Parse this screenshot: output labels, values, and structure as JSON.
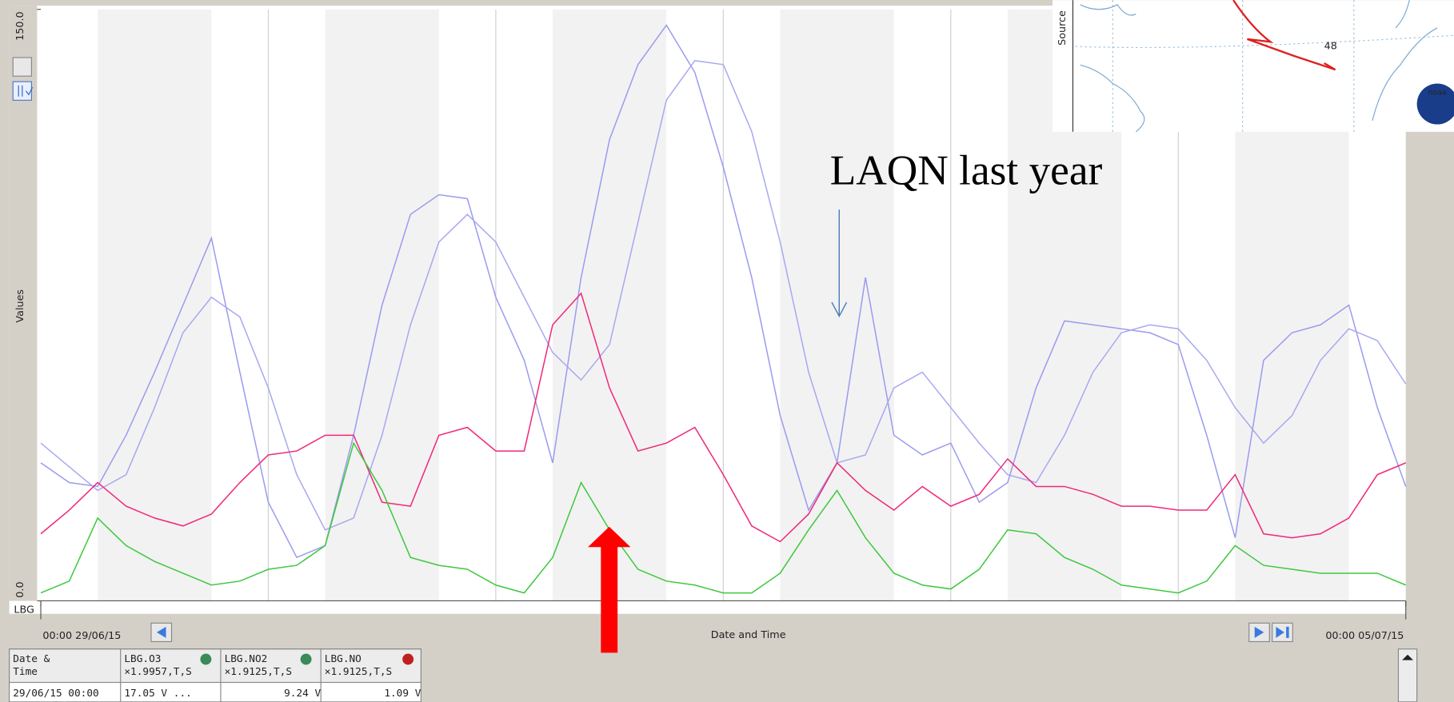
{
  "chart_data": {
    "type": "line",
    "ylabel": "Values",
    "xlabel": "Date and Time",
    "station": "LBG",
    "annotation": "LAQN last year",
    "xlim": [
      0,
      144
    ],
    "xticks": [
      {
        "value": 0,
        "label": "00:00 29/06/15"
      },
      {
        "value": 144,
        "label": "00:00 05/07/15"
      }
    ],
    "ylim": [
      0,
      150
    ],
    "yticks": [
      {
        "value": 0,
        "label": "0.0"
      },
      {
        "value": 150,
        "label": "150.0"
      }
    ],
    "x": [
      0,
      3,
      6,
      9,
      12,
      15,
      18,
      21,
      24,
      27,
      30,
      33,
      36,
      39,
      42,
      45,
      48,
      51,
      54,
      57,
      60,
      63,
      66,
      69,
      72,
      75,
      78,
      81,
      84,
      87,
      90,
      93,
      96,
      99,
      102,
      105,
      108,
      111,
      114,
      117,
      120,
      123,
      126,
      129,
      132,
      135,
      138,
      141,
      144
    ],
    "series": [
      {
        "name": "LBG.O3",
        "color": "#9b9bf0",
        "values": [
          35,
          30,
          29,
          42,
          58,
          75,
          92,
          58,
          25,
          11,
          14,
          42,
          75,
          98,
          103,
          102,
          77,
          61,
          35,
          82,
          117,
          136,
          146,
          134,
          110,
          82,
          47,
          23,
          35,
          82,
          42,
          37,
          40,
          25,
          30,
          54,
          71,
          70,
          69,
          68,
          65,
          42,
          16,
          61,
          68,
          70,
          75,
          49,
          29
        ]
      },
      {
        "color": "#a8a8f2",
        "values": [
          40,
          34,
          28,
          32,
          49,
          68,
          77,
          72,
          54,
          32,
          18,
          21,
          42,
          70,
          91,
          98,
          91,
          77,
          63,
          56,
          65,
          96,
          127,
          137,
          136,
          119,
          91,
          58,
          35,
          37,
          54,
          58,
          49,
          40,
          32,
          30,
          42,
          58,
          68,
          70,
          69,
          61,
          49,
          40,
          47,
          61,
          69,
          66,
          55
        ]
      },
      {
        "name": "LBG.NO2",
        "color": "#f0287a",
        "values": [
          17,
          23,
          30,
          24,
          21,
          19,
          22,
          30,
          37,
          38,
          42,
          42,
          25,
          24,
          42,
          44,
          38,
          38,
          70,
          78,
          54,
          38,
          40,
          44,
          32,
          19,
          15,
          22,
          35,
          28,
          23,
          29,
          24,
          27,
          36,
          29,
          29,
          27,
          24,
          24,
          23,
          23,
          32,
          17,
          16,
          17,
          21,
          32,
          35
        ]
      },
      {
        "name": "LBG.NO",
        "color": "#3ec83e",
        "values": [
          2,
          5,
          21,
          14,
          10,
          7,
          4,
          5,
          8,
          9,
          14,
          40,
          28,
          11,
          9,
          8,
          4,
          2,
          11,
          30,
          18,
          8,
          5,
          4,
          2,
          2,
          7,
          18,
          28,
          16,
          7,
          4,
          3,
          8,
          18,
          17,
          11,
          8,
          4,
          3,
          2,
          5,
          14,
          9,
          8,
          7,
          7,
          7,
          4
        ]
      }
    ]
  },
  "ui": {
    "map": {
      "source": "Source",
      "lat": "48",
      "logo": "noaa"
    },
    "table": {
      "header": [
        [
          "Date &",
          "Time"
        ],
        [
          "LBG.O3",
          "×1.9957,T,S"
        ],
        [
          "LBG.NO2",
          "×1.9125,T,S"
        ],
        [
          "LBG.NO",
          "×1.9125,T,S"
        ]
      ],
      "row": [
        "29/06/15 00:00",
        "17.05 V  ...",
        "9.24 V",
        "1.09 V"
      ]
    }
  }
}
